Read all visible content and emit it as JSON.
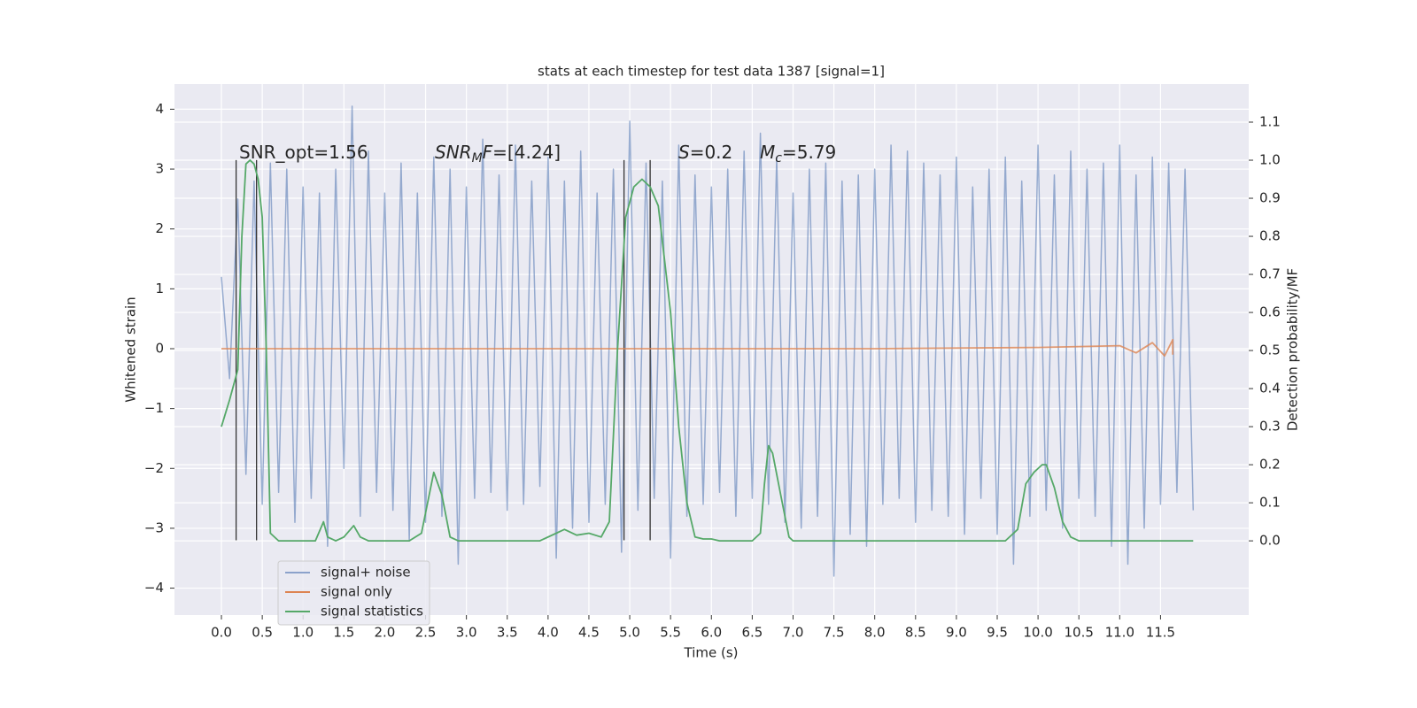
{
  "chart_data": {
    "type": "line",
    "title": "stats at each timestep for test data 1387 [signal=1]",
    "xlabel": "Time (s)",
    "ylabel": "Whitened strain",
    "y2label": "Detection probability/MF",
    "xlim": [
      -0.575,
      12.58
    ],
    "ylim": [
      -4.45,
      4.42
    ],
    "y2lim": [
      -0.195,
      1.2
    ],
    "xticks": [
      {
        "value": 0,
        "label": "0.0"
      },
      0.5,
      {
        "value": 1,
        "label": "1.0"
      },
      1.5,
      {
        "value": 2,
        "label": "2.0"
      },
      2.5,
      {
        "value": 3,
        "label": "3.0"
      },
      3.5,
      {
        "value": 4,
        "label": "4.0"
      },
      4.5,
      {
        "value": 5,
        "label": "5.0"
      },
      5.5,
      {
        "value": 6,
        "label": "6.0"
      },
      6.5,
      {
        "value": 7,
        "label": "7.0"
      },
      7.5,
      {
        "value": 8,
        "label": "8.0"
      },
      8.5,
      {
        "value": 9,
        "label": "9.0"
      },
      9.5,
      {
        "value": 10,
        "label": "10.0"
      },
      10.5,
      {
        "value": 11,
        "label": "11.0"
      },
      11.5
    ],
    "yticks": [
      {
        "value": -4,
        "label": "−4"
      },
      {
        "value": -3,
        "label": "−3"
      },
      {
        "value": -2,
        "label": "−2"
      },
      {
        "value": -1,
        "label": "−1"
      },
      0,
      1,
      2,
      3,
      4
    ],
    "y2ticks": [
      {
        "value": 0,
        "label": "0.0"
      },
      0.1,
      0.2,
      0.3,
      0.4,
      0.5,
      0.6,
      0.7,
      0.8,
      0.9,
      {
        "value": 1,
        "label": "1.0"
      },
      1.1
    ],
    "grid": true,
    "legend": "lower left",
    "series": [
      {
        "name": "signal+ noise",
        "color": "#4c72b0",
        "x": [
          0.0,
          0.1,
          0.2,
          0.3,
          0.4,
          0.5,
          0.6,
          0.7,
          0.8,
          0.9,
          1.0,
          1.1,
          1.2,
          1.3,
          1.4,
          1.5,
          1.6,
          1.7,
          1.8,
          1.9,
          2.0,
          2.1,
          2.2,
          2.3,
          2.4,
          2.5,
          2.6,
          2.7,
          2.8,
          2.9,
          3.0,
          3.1,
          3.2,
          3.3,
          3.4,
          3.5,
          3.6,
          3.7,
          3.8,
          3.9,
          4.0,
          4.1,
          4.2,
          4.3,
          4.4,
          4.5,
          4.6,
          4.7,
          4.8,
          4.9,
          5.0,
          5.1,
          5.2,
          5.3,
          5.4,
          5.5,
          5.6,
          5.7,
          5.8,
          5.9,
          6.0,
          6.1,
          6.2,
          6.3,
          6.4,
          6.5,
          6.6,
          6.7,
          6.8,
          6.9,
          7.0,
          7.1,
          7.2,
          7.3,
          7.4,
          7.5,
          7.6,
          7.7,
          7.8,
          7.9,
          8.0,
          8.1,
          8.2,
          8.3,
          8.4,
          8.5,
          8.6,
          8.7,
          8.8,
          8.9,
          9.0,
          9.1,
          9.2,
          9.3,
          9.4,
          9.5,
          9.6,
          9.7,
          9.8,
          9.9,
          10.0,
          10.1,
          10.2,
          10.3,
          10.4,
          10.5,
          10.6,
          10.7,
          10.8,
          10.9,
          11.0,
          11.1,
          11.2,
          11.3,
          11.4,
          11.5,
          11.6,
          11.7,
          11.8,
          11.9
        ],
        "values": [
          1.2,
          -0.5,
          2.5,
          -2.1,
          2.8,
          -2.6,
          3.1,
          -2.4,
          3.0,
          -2.9,
          2.7,
          -2.5,
          2.6,
          -3.3,
          3.0,
          -2.0,
          4.05,
          -2.8,
          3.3,
          -2.4,
          2.6,
          -2.7,
          3.1,
          -3.2,
          2.6,
          -2.9,
          3.2,
          -2.8,
          3.0,
          -3.6,
          2.7,
          -2.5,
          3.5,
          -2.4,
          2.9,
          -2.7,
          3.4,
          -2.6,
          2.8,
          -2.3,
          3.2,
          -3.5,
          2.8,
          -3.0,
          3.3,
          -2.9,
          2.6,
          -2.6,
          3.0,
          -3.4,
          3.8,
          -2.7,
          3.1,
          -2.5,
          2.8,
          -3.5,
          3.4,
          -2.8,
          2.9,
          -2.6,
          2.7,
          -2.4,
          3.0,
          -2.8,
          3.3,
          -2.5,
          3.6,
          -2.6,
          3.2,
          -2.9,
          2.6,
          -3.0,
          3.0,
          -2.8,
          3.1,
          -3.8,
          2.8,
          -3.1,
          2.9,
          -3.3,
          3.0,
          -2.6,
          3.4,
          -2.5,
          3.3,
          -2.9,
          3.1,
          -2.7,
          2.9,
          -2.8,
          3.2,
          -3.1,
          2.7,
          -2.5,
          3.0,
          -3.1,
          3.2,
          -3.6,
          2.8,
          -2.8,
          3.4,
          -2.7,
          2.9,
          -3.0,
          3.3,
          -2.5,
          3.0,
          -2.8,
          3.1,
          -3.3,
          3.4,
          -3.6,
          2.9,
          -3.0,
          3.2,
          -2.6,
          3.1,
          -2.4,
          3.0,
          -2.7
        ]
      },
      {
        "name": "signal only",
        "color": "#dd8452",
        "x": [
          0.0,
          8.0,
          10.0,
          11.0,
          11.2,
          11.4,
          11.55,
          11.65,
          11.65
        ],
        "values": [
          0.0,
          0.0,
          0.02,
          0.05,
          -0.07,
          0.1,
          -0.12,
          0.15,
          -0.1
        ]
      },
      {
        "name": "signal statistics",
        "color": "#55a868",
        "axis": "y2",
        "x": [
          0.0,
          0.1,
          0.2,
          0.25,
          0.3,
          0.35,
          0.4,
          0.45,
          0.5,
          0.55,
          0.6,
          0.7,
          1.0,
          1.15,
          1.25,
          1.3,
          1.4,
          1.5,
          1.62,
          1.7,
          1.8,
          2.3,
          2.45,
          2.6,
          2.7,
          2.8,
          2.9,
          3.5,
          3.9,
          4.1,
          4.2,
          4.35,
          4.5,
          4.65,
          4.75,
          4.85,
          4.95,
          5.05,
          5.15,
          5.25,
          5.35,
          5.5,
          5.6,
          5.7,
          5.8,
          5.9,
          6.0,
          6.1,
          6.5,
          6.6,
          6.65,
          6.7,
          6.75,
          6.85,
          6.95,
          7.0,
          9.6,
          9.75,
          9.85,
          9.95,
          10.05,
          10.1,
          10.2,
          10.3,
          10.4,
          10.5,
          11.9
        ],
        "values": [
          0.3,
          0.37,
          0.45,
          0.8,
          0.99,
          1.0,
          0.99,
          0.95,
          0.85,
          0.5,
          0.02,
          0.0,
          0.0,
          0.0,
          0.05,
          0.01,
          0.0,
          0.01,
          0.04,
          0.01,
          0.0,
          0.0,
          0.02,
          0.18,
          0.12,
          0.01,
          0.0,
          0.0,
          0.0,
          0.02,
          0.03,
          0.015,
          0.02,
          0.01,
          0.05,
          0.5,
          0.85,
          0.93,
          0.95,
          0.93,
          0.88,
          0.6,
          0.3,
          0.1,
          0.01,
          0.005,
          0.005,
          0.0,
          0.0,
          0.02,
          0.15,
          0.25,
          0.23,
          0.12,
          0.01,
          0.0,
          0.0,
          0.03,
          0.15,
          0.18,
          0.2,
          0.2,
          0.14,
          0.05,
          0.01,
          0.0,
          0.0
        ]
      }
    ],
    "vlines": {
      "color": "#333333",
      "x": [
        0.18,
        0.43,
        4.93,
        5.25
      ],
      "ymin": -3.2,
      "ymax": 3.15
    },
    "annotations": [
      [
        {
          "text": "SNR_opt=1.56"
        }
      ],
      [
        {
          "text": "SNR",
          "italic": true
        },
        {
          "text": "M",
          "italic": true,
          "sub": true
        },
        {
          "text": "F",
          "italic": true
        },
        {
          "text": "=[4.24]"
        }
      ],
      [
        {
          "text": "S",
          "italic": true
        },
        {
          "text": "=0.2"
        }
      ],
      [
        {
          "text": "M",
          "italic": true
        },
        {
          "text": "c",
          "italic": true,
          "sub": true
        },
        {
          "text": "=5.79"
        }
      ]
    ]
  }
}
